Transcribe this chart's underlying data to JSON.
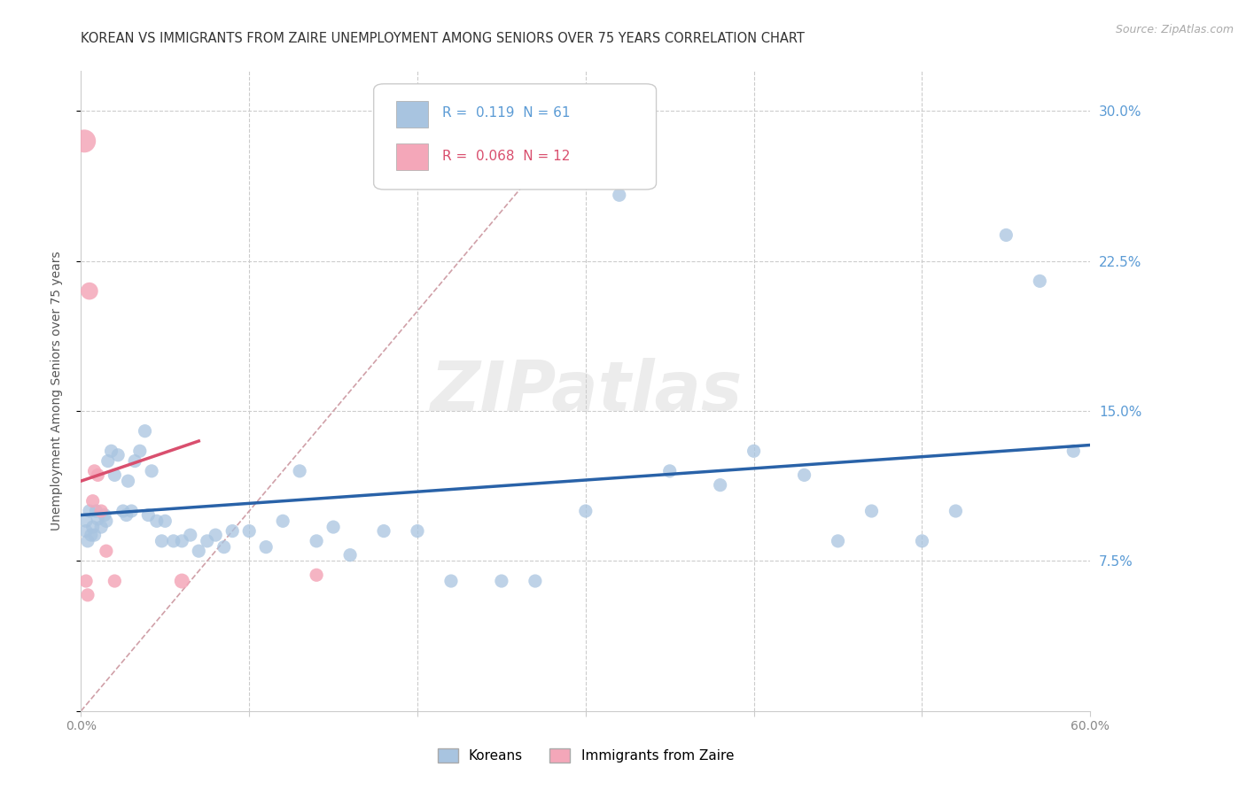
{
  "title": "KOREAN VS IMMIGRANTS FROM ZAIRE UNEMPLOYMENT AMONG SENIORS OVER 75 YEARS CORRELATION CHART",
  "source": "Source: ZipAtlas.com",
  "ylabel": "Unemployment Among Seniors over 75 years",
  "xmin": 0.0,
  "xmax": 0.6,
  "ymin": 0.0,
  "ymax": 0.32,
  "yticks": [
    0.0,
    0.075,
    0.15,
    0.225,
    0.3
  ],
  "ytick_labels": [
    "",
    "7.5%",
    "15.0%",
    "22.5%",
    "30.0%"
  ],
  "xticks": [
    0.0,
    0.1,
    0.2,
    0.3,
    0.4,
    0.5,
    0.6
  ],
  "xtick_labels": [
    "0.0%",
    "",
    "",
    "",
    "",
    "",
    "60.0%"
  ],
  "legend_label1": "Koreans",
  "legend_label2": "Immigrants from Zaire",
  "R1": "0.119",
  "N1": "61",
  "R2": "0.068",
  "N2": "12",
  "color_korean": "#a8c4e0",
  "color_zaire": "#f4a7b9",
  "color_korean_line": "#2962a8",
  "color_zaire_line": "#d94f6e",
  "color_diag_line": "#d0a0a8",
  "background_color": "#ffffff",
  "watermark": "ZIPatlas",
  "korean_x": [
    0.003,
    0.003,
    0.004,
    0.005,
    0.006,
    0.007,
    0.008,
    0.009,
    0.01,
    0.012,
    0.014,
    0.015,
    0.016,
    0.018,
    0.02,
    0.022,
    0.025,
    0.027,
    0.028,
    0.03,
    0.032,
    0.035,
    0.038,
    0.04,
    0.042,
    0.045,
    0.048,
    0.05,
    0.055,
    0.06,
    0.065,
    0.07,
    0.075,
    0.08,
    0.085,
    0.09,
    0.1,
    0.11,
    0.12,
    0.13,
    0.14,
    0.15,
    0.16,
    0.18,
    0.2,
    0.22,
    0.25,
    0.27,
    0.3,
    0.32,
    0.35,
    0.38,
    0.4,
    0.43,
    0.45,
    0.47,
    0.5,
    0.52,
    0.55,
    0.57,
    0.59
  ],
  "korean_y": [
    0.095,
    0.09,
    0.085,
    0.1,
    0.088,
    0.092,
    0.088,
    0.1,
    0.096,
    0.092,
    0.098,
    0.095,
    0.125,
    0.13,
    0.118,
    0.128,
    0.1,
    0.098,
    0.115,
    0.1,
    0.125,
    0.13,
    0.14,
    0.098,
    0.12,
    0.095,
    0.085,
    0.095,
    0.085,
    0.085,
    0.088,
    0.08,
    0.085,
    0.088,
    0.082,
    0.09,
    0.09,
    0.082,
    0.095,
    0.12,
    0.085,
    0.092,
    0.078,
    0.09,
    0.09,
    0.065,
    0.065,
    0.065,
    0.1,
    0.258,
    0.12,
    0.113,
    0.13,
    0.118,
    0.085,
    0.1,
    0.085,
    0.1,
    0.238,
    0.215,
    0.13
  ],
  "zaire_x": [
    0.002,
    0.003,
    0.004,
    0.005,
    0.007,
    0.008,
    0.01,
    0.012,
    0.015,
    0.02,
    0.06,
    0.14
  ],
  "zaire_y": [
    0.285,
    0.065,
    0.058,
    0.21,
    0.105,
    0.12,
    0.118,
    0.1,
    0.08,
    0.065,
    0.065,
    0.068
  ],
  "zaire_sizes": [
    350,
    120,
    120,
    200,
    120,
    120,
    120,
    120,
    120,
    120,
    150,
    120
  ],
  "korean_sizes": [
    120,
    120,
    120,
    120,
    120,
    120,
    120,
    120,
    120,
    120,
    120,
    120,
    120,
    120,
    120,
    120,
    120,
    120,
    120,
    120,
    120,
    120,
    120,
    120,
    120,
    120,
    120,
    120,
    120,
    120,
    120,
    120,
    120,
    120,
    120,
    120,
    120,
    120,
    120,
    120,
    120,
    120,
    120,
    120,
    120,
    120,
    120,
    120,
    120,
    120,
    120,
    120,
    120,
    120,
    120,
    120,
    120,
    120,
    120,
    120,
    120
  ],
  "blue_line_x0": 0.0,
  "blue_line_y0": 0.098,
  "blue_line_x1": 0.6,
  "blue_line_y1": 0.133,
  "pink_line_x0": 0.0,
  "pink_line_y0": 0.115,
  "pink_line_x1": 0.07,
  "pink_line_y1": 0.135,
  "diag_line_x0": 0.0,
  "diag_line_y0": 0.0,
  "diag_line_x1": 0.3,
  "diag_line_y1": 0.3
}
